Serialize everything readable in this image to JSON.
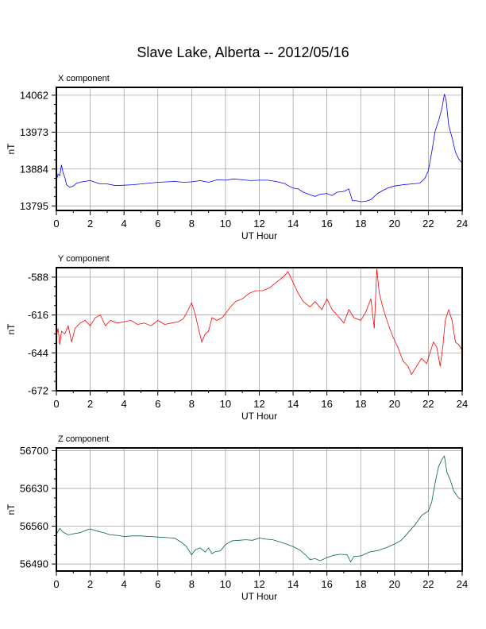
{
  "page_title": "Slave Lake, Alberta -- 2012/05/16",
  "chart_data": [
    {
      "type": "line",
      "title": "X component",
      "xlabel": "UT Hour",
      "ylabel": "nT",
      "xlim": [
        0,
        24
      ],
      "ylim": [
        13784,
        14081
      ],
      "xticks": [
        0,
        2,
        4,
        6,
        8,
        10,
        12,
        14,
        16,
        18,
        20,
        22,
        24
      ],
      "yticks": [
        13795,
        13884,
        13973,
        14062
      ],
      "grid": true,
      "color": "#0000ff",
      "series": [
        {
          "values": [
            [
              0,
              13856
            ],
            [
              0.1,
              13872
            ],
            [
              0.2,
              13868
            ],
            [
              0.3,
              13894
            ],
            [
              0.4,
              13874
            ],
            [
              0.5,
              13864
            ],
            [
              0.6,
              13846
            ],
            [
              0.8,
              13840
            ],
            [
              1.0,
              13843
            ],
            [
              1.2,
              13850
            ],
            [
              1.5,
              13853
            ],
            [
              2.0,
              13856
            ],
            [
              2.3,
              13852
            ],
            [
              2.6,
              13848
            ],
            [
              3.0,
              13848
            ],
            [
              3.5,
              13844
            ],
            [
              4.0,
              13845
            ],
            [
              4.5,
              13846
            ],
            [
              5.0,
              13848
            ],
            [
              5.5,
              13850
            ],
            [
              6.0,
              13852
            ],
            [
              6.5,
              13853
            ],
            [
              7.0,
              13854
            ],
            [
              7.5,
              13852
            ],
            [
              8.0,
              13853
            ],
            [
              8.5,
              13856
            ],
            [
              9.0,
              13852
            ],
            [
              9.5,
              13858
            ],
            [
              10.0,
              13857
            ],
            [
              10.5,
              13860
            ],
            [
              11.0,
              13858
            ],
            [
              11.5,
              13856
            ],
            [
              12.0,
              13857
            ],
            [
              12.5,
              13857
            ],
            [
              13.0,
              13854
            ],
            [
              13.5,
              13849
            ],
            [
              13.8,
              13842
            ],
            [
              14.0,
              13838
            ],
            [
              14.3,
              13836
            ],
            [
              14.6,
              13828
            ],
            [
              15.0,
              13822
            ],
            [
              15.3,
              13818
            ],
            [
              15.6,
              13823
            ],
            [
              16.0,
              13825
            ],
            [
              16.3,
              13820
            ],
            [
              16.6,
              13828
            ],
            [
              17.0,
              13830
            ],
            [
              17.3,
              13836
            ],
            [
              17.5,
              13808
            ],
            [
              17.8,
              13807
            ],
            [
              18.0,
              13805
            ],
            [
              18.3,
              13806
            ],
            [
              18.6,
              13810
            ],
            [
              19.0,
              13825
            ],
            [
              19.3,
              13832
            ],
            [
              19.6,
              13838
            ],
            [
              20.0,
              13843
            ],
            [
              20.5,
              13846
            ],
            [
              21.0,
              13848
            ],
            [
              21.5,
              13850
            ],
            [
              21.8,
              13862
            ],
            [
              22.0,
              13880
            ],
            [
              22.2,
              13925
            ],
            [
              22.4,
              13975
            ],
            [
              22.6,
              14000
            ],
            [
              22.8,
              14030
            ],
            [
              22.95,
              14065
            ],
            [
              23.05,
              14050
            ],
            [
              23.2,
              13990
            ],
            [
              23.4,
              13960
            ],
            [
              23.6,
              13925
            ],
            [
              23.8,
              13908
            ],
            [
              24.0,
              13898
            ]
          ]
        }
      ]
    },
    {
      "type": "line",
      "title": "Y component",
      "xlabel": "UT Hour",
      "ylabel": "nT",
      "xlim": [
        0,
        24
      ],
      "ylim": [
        -672,
        -581
      ],
      "xticks": [
        0,
        2,
        4,
        6,
        8,
        10,
        12,
        14,
        16,
        18,
        20,
        22,
        24
      ],
      "yticks": [
        -588,
        -616,
        -644,
        -672
      ],
      "grid": true,
      "color": "#ff0000",
      "series": [
        {
          "values": [
            [
              0,
              -632
            ],
            [
              0.1,
              -626
            ],
            [
              0.2,
              -638
            ],
            [
              0.3,
              -628
            ],
            [
              0.5,
              -630
            ],
            [
              0.7,
              -624
            ],
            [
              0.9,
              -636
            ],
            [
              1.1,
              -626
            ],
            [
              1.4,
              -622
            ],
            [
              1.7,
              -620
            ],
            [
              2.0,
              -624
            ],
            [
              2.3,
              -618
            ],
            [
              2.6,
              -616
            ],
            [
              2.9,
              -624
            ],
            [
              3.2,
              -620
            ],
            [
              3.6,
              -622
            ],
            [
              4.0,
              -621
            ],
            [
              4.4,
              -620
            ],
            [
              4.8,
              -623
            ],
            [
              5.2,
              -622
            ],
            [
              5.6,
              -624
            ],
            [
              6.0,
              -620
            ],
            [
              6.4,
              -623
            ],
            [
              6.8,
              -622
            ],
            [
              7.2,
              -621
            ],
            [
              7.5,
              -619
            ],
            [
              7.8,
              -612
            ],
            [
              8.0,
              -607
            ],
            [
              8.2,
              -615
            ],
            [
              8.4,
              -626
            ],
            [
              8.6,
              -636
            ],
            [
              8.8,
              -630
            ],
            [
              9.0,
              -628
            ],
            [
              9.2,
              -618
            ],
            [
              9.5,
              -620
            ],
            [
              9.8,
              -618
            ],
            [
              10.0,
              -615
            ],
            [
              10.3,
              -610
            ],
            [
              10.6,
              -606
            ],
            [
              11.0,
              -604
            ],
            [
              11.4,
              -600
            ],
            [
              11.8,
              -598
            ],
            [
              12.2,
              -598
            ],
            [
              12.6,
              -596
            ],
            [
              13.0,
              -592
            ],
            [
              13.4,
              -588
            ],
            [
              13.7,
              -584
            ],
            [
              14.0,
              -592
            ],
            [
              14.3,
              -600
            ],
            [
              14.6,
              -606
            ],
            [
              15.0,
              -610
            ],
            [
              15.3,
              -606
            ],
            [
              15.7,
              -612
            ],
            [
              16.0,
              -604
            ],
            [
              16.3,
              -612
            ],
            [
              16.6,
              -616
            ],
            [
              17.0,
              -622
            ],
            [
              17.3,
              -612
            ],
            [
              17.6,
              -618
            ],
            [
              18.0,
              -620
            ],
            [
              18.3,
              -614
            ],
            [
              18.6,
              -604
            ],
            [
              18.8,
              -626
            ],
            [
              18.95,
              -582
            ],
            [
              19.1,
              -600
            ],
            [
              19.3,
              -610
            ],
            [
              19.6,
              -622
            ],
            [
              19.9,
              -632
            ],
            [
              20.2,
              -640
            ],
            [
              20.5,
              -650
            ],
            [
              20.8,
              -654
            ],
            [
              21.0,
              -660
            ],
            [
              21.3,
              -654
            ],
            [
              21.6,
              -648
            ],
            [
              21.9,
              -652
            ],
            [
              22.1,
              -644
            ],
            [
              22.3,
              -636
            ],
            [
              22.5,
              -640
            ],
            [
              22.7,
              -654
            ],
            [
              22.85,
              -640
            ],
            [
              23.0,
              -620
            ],
            [
              23.2,
              -612
            ],
            [
              23.4,
              -620
            ],
            [
              23.6,
              -636
            ],
            [
              23.8,
              -638
            ],
            [
              24.0,
              -642
            ]
          ]
        }
      ]
    },
    {
      "type": "line",
      "title": "Z component",
      "xlabel": "UT Hour",
      "ylabel": "nT",
      "xlim": [
        0,
        24
      ],
      "ylim": [
        56477,
        56705
      ],
      "xticks": [
        0,
        2,
        4,
        6,
        8,
        10,
        12,
        14,
        16,
        18,
        20,
        22,
        24
      ],
      "yticks": [
        56490,
        56560,
        56630,
        56700
      ],
      "grid": true,
      "color": "#006633",
      "series": [
        {
          "values": [
            [
              0,
              56545
            ],
            [
              0.2,
              56556
            ],
            [
              0.4,
              56549
            ],
            [
              0.7,
              56544
            ],
            [
              1.0,
              56546
            ],
            [
              1.4,
              56548
            ],
            [
              1.8,
              56553
            ],
            [
              2.0,
              56555
            ],
            [
              2.4,
              56551
            ],
            [
              2.8,
              56548
            ],
            [
              3.2,
              56544
            ],
            [
              3.6,
              56543
            ],
            [
              4.0,
              56541
            ],
            [
              4.5,
              56542
            ],
            [
              5.0,
              56542
            ],
            [
              5.5,
              56541
            ],
            [
              6.0,
              56540
            ],
            [
              6.5,
              56539
            ],
            [
              7.0,
              56538
            ],
            [
              7.4,
              56530
            ],
            [
              7.7,
              56522
            ],
            [
              8.0,
              56507
            ],
            [
              8.2,
              56516
            ],
            [
              8.5,
              56520
            ],
            [
              8.8,
              56512
            ],
            [
              9.0,
              56520
            ],
            [
              9.2,
              56509
            ],
            [
              9.4,
              56513
            ],
            [
              9.7,
              56514
            ],
            [
              10.0,
              56526
            ],
            [
              10.4,
              56533
            ],
            [
              10.8,
              56534
            ],
            [
              11.2,
              56535
            ],
            [
              11.6,
              56534
            ],
            [
              12.0,
              56538
            ],
            [
              12.4,
              56536
            ],
            [
              12.8,
              56535
            ],
            [
              13.2,
              56531
            ],
            [
              13.6,
              56527
            ],
            [
              14.0,
              56522
            ],
            [
              14.4,
              56516
            ],
            [
              14.8,
              56505
            ],
            [
              15.0,
              56498
            ],
            [
              15.3,
              56500
            ],
            [
              15.6,
              56496
            ],
            [
              16.0,
              56502
            ],
            [
              16.4,
              56506
            ],
            [
              16.8,
              56508
            ],
            [
              17.2,
              56507
            ],
            [
              17.4,
              56494
            ],
            [
              17.6,
              56504
            ],
            [
              18.0,
              56505
            ],
            [
              18.5,
              56512
            ],
            [
              19.0,
              56515
            ],
            [
              19.5,
              56520
            ],
            [
              20.0,
              56527
            ],
            [
              20.4,
              56534
            ],
            [
              20.8,
              56548
            ],
            [
              21.2,
              56562
            ],
            [
              21.6,
              56580
            ],
            [
              22.0,
              56588
            ],
            [
              22.2,
              56605
            ],
            [
              22.4,
              56640
            ],
            [
              22.6,
              56670
            ],
            [
              22.8,
              56684
            ],
            [
              22.95,
              56690
            ],
            [
              23.1,
              56660
            ],
            [
              23.3,
              56645
            ],
            [
              23.5,
              56625
            ],
            [
              23.8,
              56612
            ],
            [
              24.0,
              56610
            ]
          ]
        }
      ]
    }
  ]
}
